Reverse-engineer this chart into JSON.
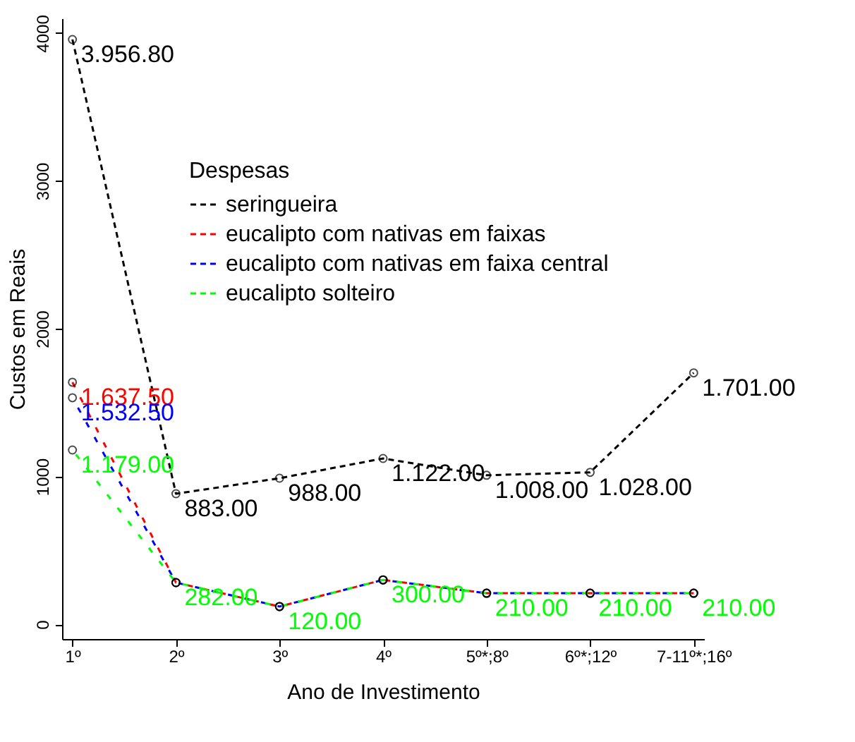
{
  "chart_data": {
    "type": "line",
    "xlabel": "Ano de Investimento",
    "ylabel": "Custos em Reais",
    "legend_title": "Despesas",
    "legend": "top right",
    "marker": "circle",
    "line_style": "dashed",
    "grid": false,
    "categories": [
      "1º",
      "2º",
      "3º",
      "4º",
      "5º*;8º",
      "6º*;12º",
      "7-11º*;16º"
    ],
    "ylim": [
      -100,
      4100
    ],
    "yticks": [
      0,
      1000,
      2000,
      3000,
      4000
    ],
    "series": [
      {
        "name": "seringueira",
        "color": "#000000",
        "values": [
          3956.8,
          883,
          988,
          1122,
          1008,
          1028,
          1701
        ],
        "value_labels": [
          "3.956.80",
          "883.00",
          "988.00",
          "1.122.00",
          "1.008.00",
          "1.028.00",
          "1.701.00"
        ]
      },
      {
        "name": "eucalipto com nativas em faixas",
        "color": "#ff0000",
        "values": [
          1637.5,
          282,
          120,
          300,
          210,
          210,
          210
        ],
        "value_labels": [
          "1.637.50",
          null,
          null,
          null,
          null,
          null,
          null
        ]
      },
      {
        "name": "eucalipto com nativas em faixa central",
        "color": "#0000ff",
        "values": [
          1532.5,
          282,
          120,
          300,
          210,
          210,
          210
        ],
        "value_labels": [
          "1.532.50",
          null,
          null,
          null,
          null,
          null,
          null
        ]
      },
      {
        "name": "eucalipto solteiro",
        "color": "#00ff00",
        "values": [
          1179,
          282,
          120,
          300,
          210,
          210,
          210
        ],
        "value_labels": [
          "1.179.00",
          "282.00",
          "120.00",
          "300.00",
          "210.00",
          "210.00",
          "210.00"
        ]
      }
    ]
  }
}
